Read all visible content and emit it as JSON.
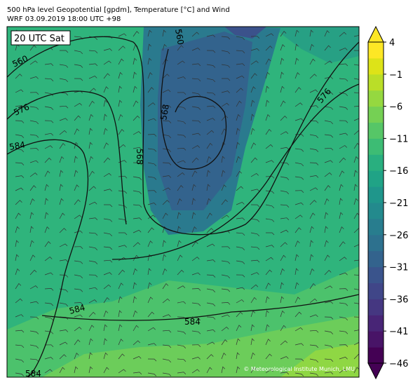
{
  "header": {
    "title_line1": "500 hPa level Geopotential [gpdm], Temperature [°C] and Wind",
    "title_line2": "WRF 03.09.2019 18:00 UTC +98"
  },
  "map": {
    "time_label": "20 UTC Sat",
    "credit": "© Meteorological Institute Munich, LMU",
    "contour_labels": [
      560,
      576,
      584,
      568,
      560,
      568,
      576,
      584,
      584,
      584
    ]
  },
  "colorbar": {
    "lim": [
      -46,
      4
    ],
    "ticks": [
      4,
      {
        "value": -1,
        "label": "−1"
      },
      {
        "value": -6,
        "label": "−6"
      },
      {
        "value": -11,
        "label": "−11"
      },
      {
        "value": -16,
        "label": "−16"
      },
      {
        "value": -21,
        "label": "−21"
      },
      {
        "value": -26,
        "label": "−26"
      },
      {
        "value": -31,
        "label": "−31"
      },
      {
        "value": -36,
        "label": "−36"
      },
      {
        "value": -41,
        "label": "−41"
      },
      {
        "value": -46,
        "label": "−46"
      }
    ],
    "colors": [
      "#440154",
      "#481467",
      "#482576",
      "#453781",
      "#404688",
      "#3a548c",
      "#33638d",
      "#2d718e",
      "#287d8e",
      "#238a8d",
      "#1f968b",
      "#20a386",
      "#29af7f",
      "#3dbc74",
      "#56c667",
      "#75d054",
      "#95d840",
      "#bade28",
      "#dde318",
      "#fde725"
    ]
  }
}
